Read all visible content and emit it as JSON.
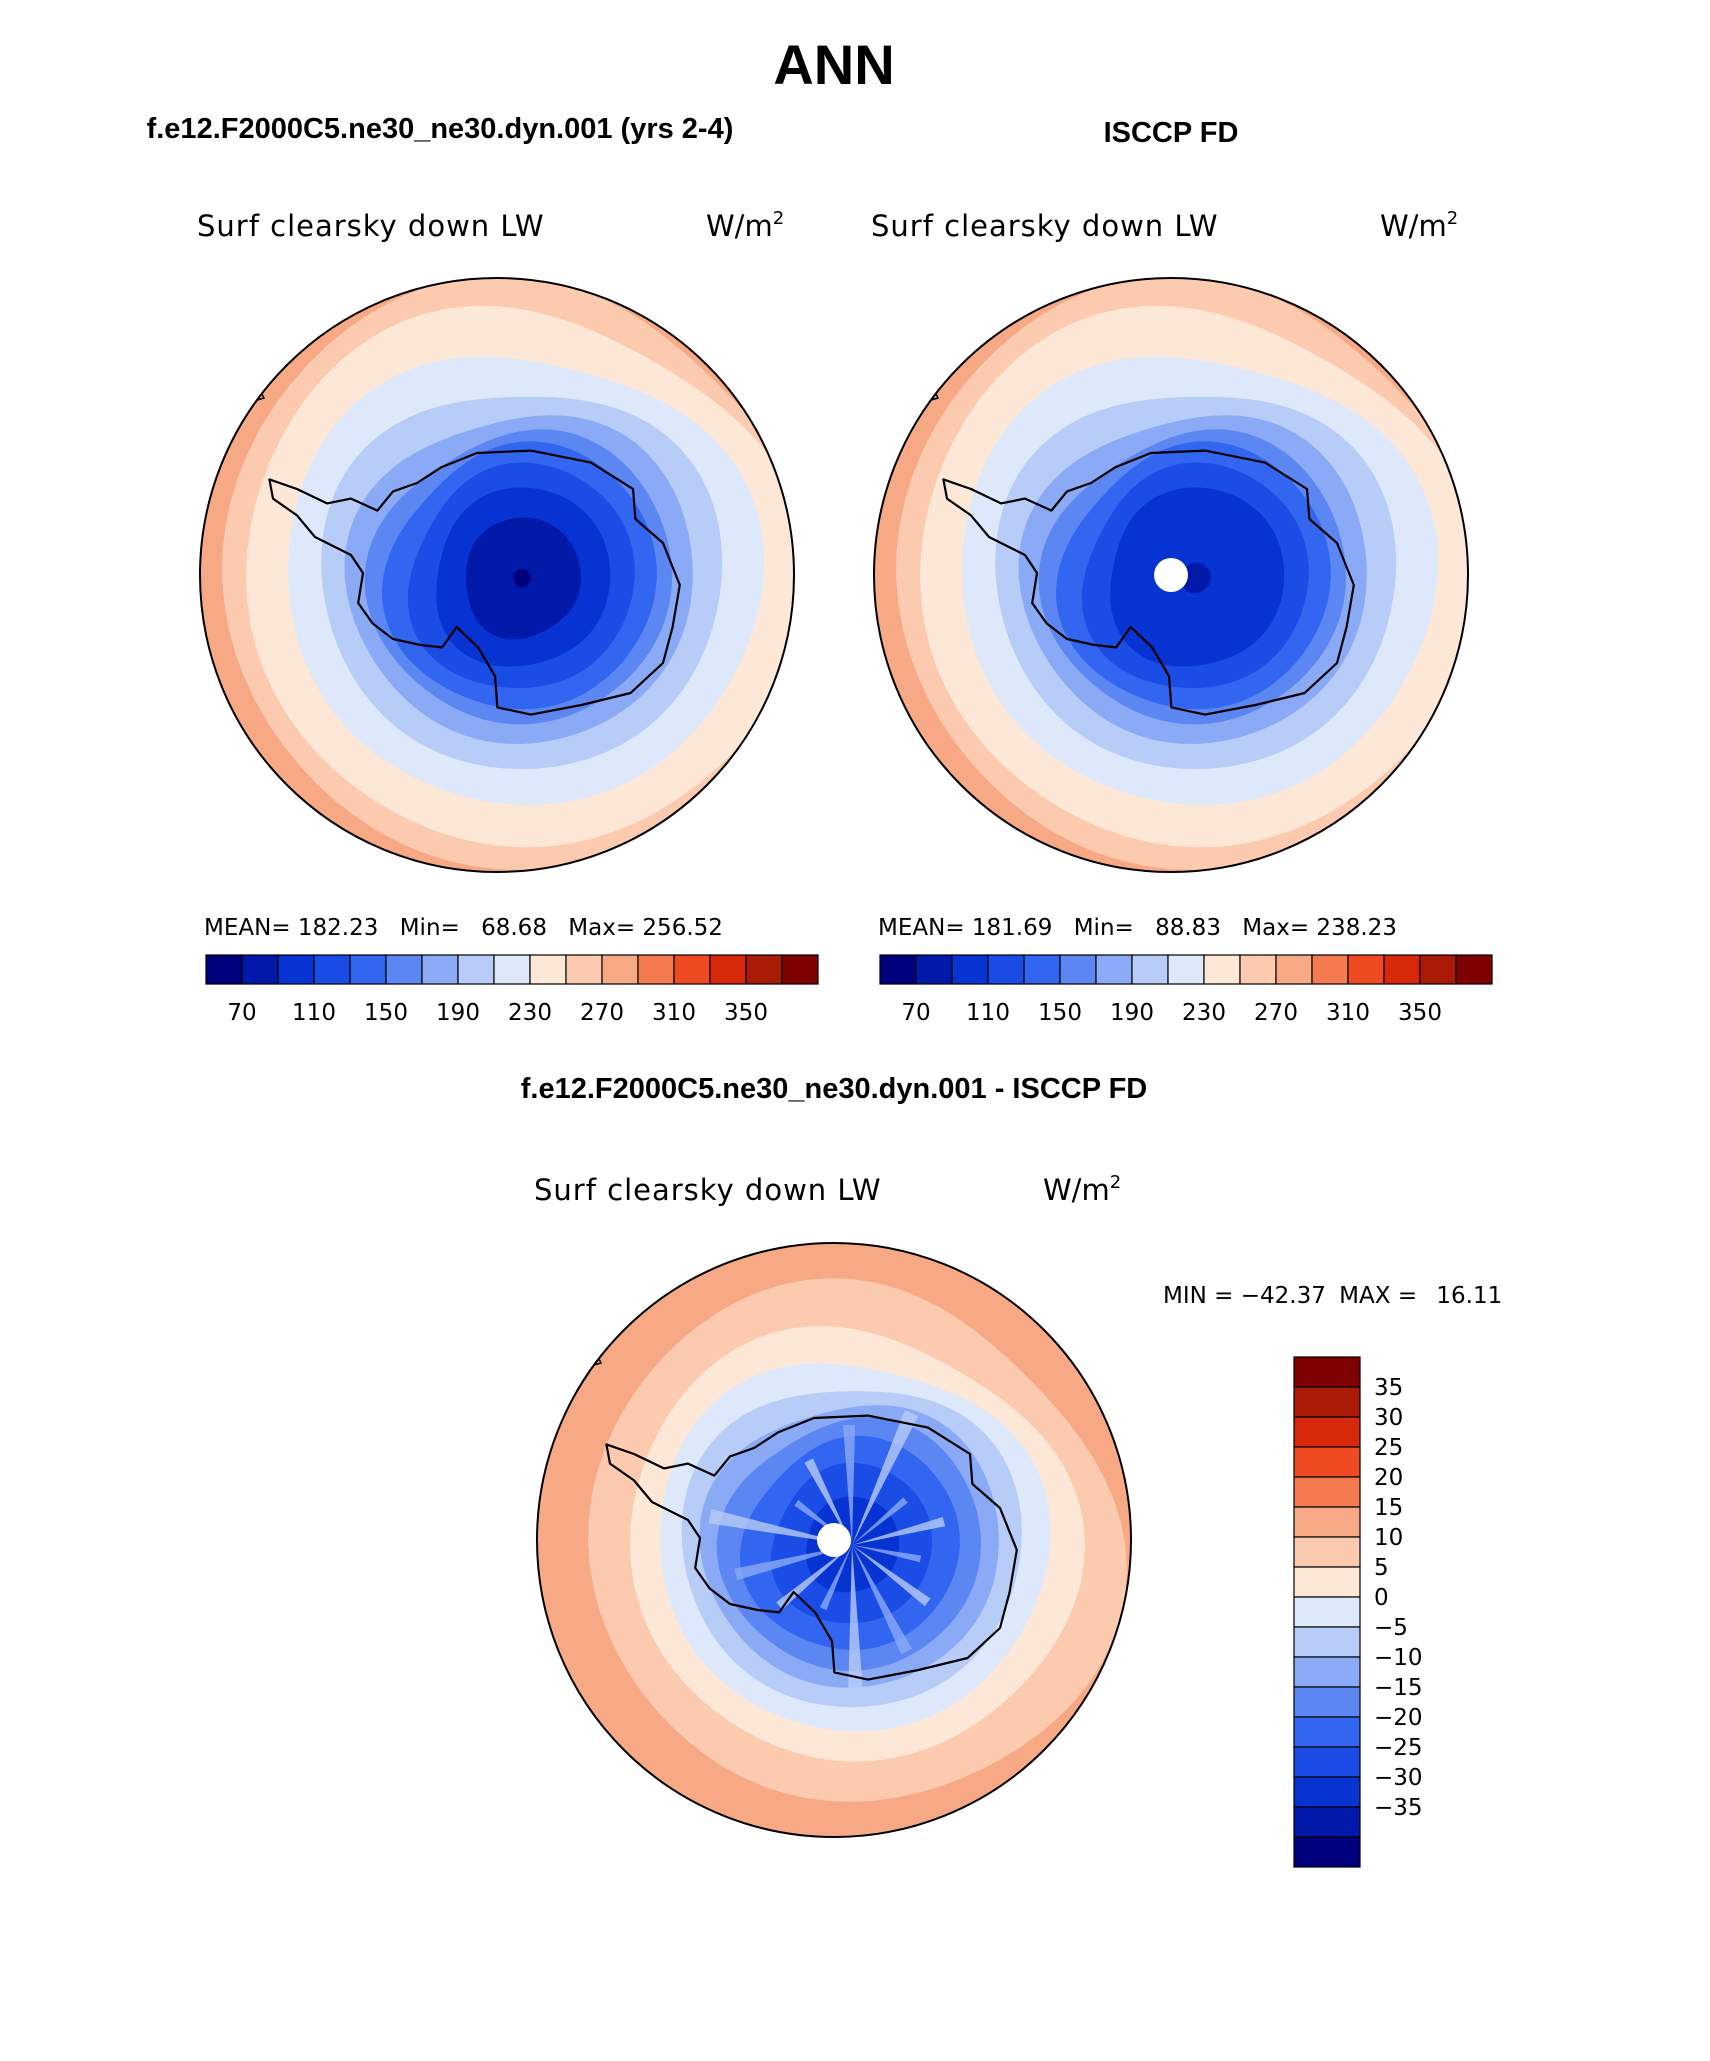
{
  "figure": {
    "title": "ANN",
    "diff_title": "f.e12.F2000C5.ne30_ne30.dyn.001 - ISCCP FD"
  },
  "chart_data": [
    {
      "type": "heatmap",
      "projection": "south-polar-stereographic",
      "case_title": "f.e12.F2000C5.ne30_ne30.dyn.001 (yrs 2-4)",
      "field": "Surf clearsky down LW",
      "units": "W/m",
      "units_sup": "2",
      "stats": {
        "mean_label": "MEAN=",
        "mean": "182.23",
        "min_label": "Min=",
        "min": "68.68",
        "max_label": "Max=",
        "max": "256.52"
      },
      "contour_levels": [
        70,
        90,
        110,
        130,
        150,
        170,
        190,
        210,
        230,
        250,
        270,
        290,
        310,
        330,
        350
      ],
      "colorbar_tick_labels": [
        "70",
        "110",
        "150",
        "190",
        "230",
        "270",
        "310",
        "350"
      ],
      "colors": [
        "#00007f",
        "#0019a8",
        "#0633d1",
        "#1a4ce6",
        "#3366f0",
        "#5c87f2",
        "#8aaaf5",
        "#b8ccf8",
        "#dde8fb",
        "#fde7d6",
        "#fbcaaf",
        "#f7a884",
        "#f47a4f",
        "#ef4a21",
        "#d8280a",
        "#aa1b05",
        "#7f0000"
      ],
      "pole_value": 68.68
    },
    {
      "type": "heatmap",
      "projection": "south-polar-stereographic",
      "case_title": "ISCCP FD",
      "field": "Surf clearsky down LW",
      "units": "W/m",
      "units_sup": "2",
      "stats": {
        "mean_label": "MEAN=",
        "mean": "181.69",
        "min_label": "Min=",
        "min": "88.83",
        "max_label": "Max=",
        "max": "238.23"
      },
      "contour_levels": [
        70,
        90,
        110,
        130,
        150,
        170,
        190,
        210,
        230,
        250,
        270,
        290,
        310,
        330,
        350
      ],
      "colorbar_tick_labels": [
        "70",
        "110",
        "150",
        "190",
        "230",
        "270",
        "310",
        "350"
      ],
      "colors": [
        "#00007f",
        "#0019a8",
        "#0633d1",
        "#1a4ce6",
        "#3366f0",
        "#5c87f2",
        "#8aaaf5",
        "#b8ccf8",
        "#dde8fb",
        "#fde7d6",
        "#fbcaaf",
        "#f7a884",
        "#f47a4f",
        "#ef4a21",
        "#d8280a",
        "#aa1b05",
        "#7f0000"
      ],
      "pole_missing": true
    },
    {
      "type": "heatmap",
      "projection": "south-polar-stereographic",
      "case_title": "f.e12.F2000C5.ne30_ne30.dyn.001 - ISCCP FD",
      "field": "Surf clearsky down LW",
      "units": "W/m",
      "units_sup": "2",
      "stats": {
        "min_label": "MIN =",
        "min": "−42.37",
        "max_label": "MAX =",
        "max": "16.11"
      },
      "contour_levels": [
        -35,
        -30,
        -25,
        -20,
        -15,
        -10,
        -5,
        0,
        5,
        10,
        15,
        20,
        25,
        30,
        35
      ],
      "colorbar_tick_labels": [
        "35",
        "30",
        "25",
        "20",
        "15",
        "10",
        "5",
        "0",
        "−5",
        "−10",
        "−15",
        "−20",
        "−25",
        "−30",
        "−35"
      ],
      "colors": [
        "#7f0000",
        "#aa1b05",
        "#d8280a",
        "#ef4a21",
        "#f47a4f",
        "#f7a884",
        "#fbcaaf",
        "#fde7d6",
        "#dde8fb",
        "#b8ccf8",
        "#8aaaf5",
        "#5c87f2",
        "#3366f0",
        "#1a4ce6",
        "#0633d1",
        "#0019a8",
        "#00007f"
      ],
      "pole_missing": true
    }
  ]
}
